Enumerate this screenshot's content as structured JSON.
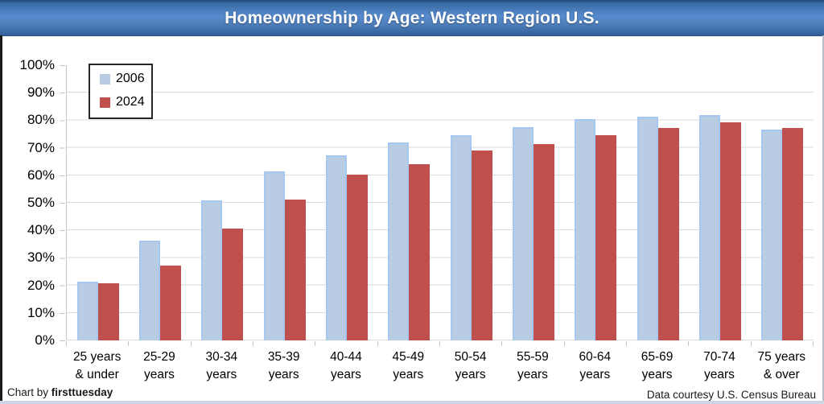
{
  "banner": {
    "title": "Homeownership by Age: Western Region U.S."
  },
  "footer": {
    "credit_prefix": "Chart by ",
    "credit_brand": "firsttuesday",
    "source": "Data courtesy U.S. Census Bureau"
  },
  "colors": {
    "banner_blue": "#4a7ab5",
    "series_2006_fill": "#b8cce4",
    "series_2006_border": "#a6c8f0",
    "series_2024_fill": "#c0504d",
    "gridline": "#dadada",
    "text": "#000000"
  },
  "chart_data": {
    "type": "bar",
    "title": "Homeownership by Age: Western Region U.S.",
    "categories": [
      "25 years & under",
      "25-29 years",
      "30-34 years",
      "35-39 years",
      "40-44 years",
      "45-49 years",
      "50-54 years",
      "55-59 years",
      "60-64 years",
      "65-69 years",
      "70-74 years",
      "75 years & over"
    ],
    "category_lines": [
      [
        "25 years",
        "& under"
      ],
      [
        "25-29",
        "years"
      ],
      [
        "30-34",
        "years"
      ],
      [
        "35-39",
        "years"
      ],
      [
        "40-44",
        "years"
      ],
      [
        "45-49",
        "years"
      ],
      [
        "50-54",
        "years"
      ],
      [
        "55-59",
        "years"
      ],
      [
        "60-64",
        "years"
      ],
      [
        "65-69",
        "years"
      ],
      [
        "70-74",
        "years"
      ],
      [
        "75 years",
        "& over"
      ]
    ],
    "series": [
      {
        "name": "2006",
        "fill": "#b8cce4",
        "border": "#a6c8f0",
        "values": [
          21.5,
          36.2,
          51.0,
          61.3,
          67.2,
          71.8,
          74.7,
          77.5,
          80.4,
          81.3,
          82.0,
          76.7
        ]
      },
      {
        "name": "2024",
        "fill": "#c0504d",
        "border": "#bd4a47",
        "values": [
          20.7,
          27.3,
          40.6,
          51.2,
          60.3,
          64.0,
          69.0,
          71.3,
          74.6,
          77.1,
          79.3,
          77.1
        ]
      }
    ],
    "xlabel": "",
    "ylabel": "",
    "ylim": [
      0,
      100
    ],
    "ytick_labels": [
      "0%",
      "10%",
      "20%",
      "30%",
      "40%",
      "50%",
      "60%",
      "70%",
      "80%",
      "90%",
      "100%"
    ],
    "grid": true,
    "legend_position": "top-left"
  }
}
